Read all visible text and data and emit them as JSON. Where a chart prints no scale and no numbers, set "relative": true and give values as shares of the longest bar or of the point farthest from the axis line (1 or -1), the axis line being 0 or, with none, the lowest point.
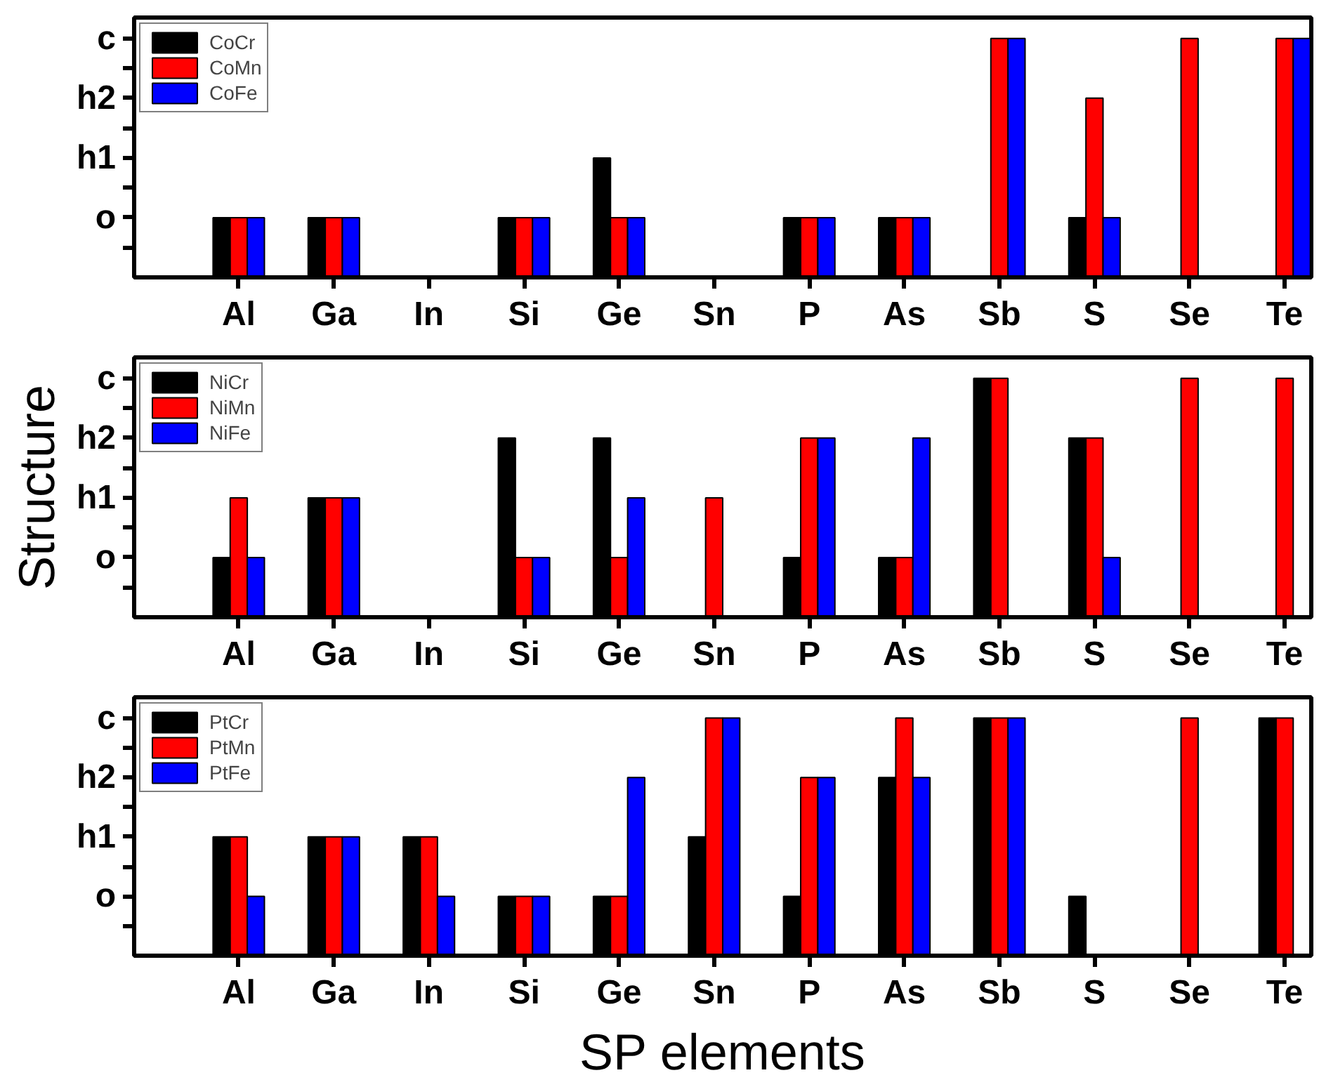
{
  "chart_data": [
    {
      "type": "bar",
      "relative": true,
      "categories": [
        "Al",
        "Ga",
        "In",
        "Si",
        "Ge",
        "Sn",
        "P",
        "As",
        "Sb",
        "S",
        "Se",
        "Te"
      ],
      "y_categories": [
        "c",
        "h2",
        "h1",
        "o"
      ],
      "series": [
        {
          "name": "CoCr",
          "color": "#000000",
          "values": [
            0.25,
            0.25,
            null,
            0.25,
            0.5,
            null,
            0.25,
            0.25,
            null,
            0.25,
            null,
            null
          ]
        },
        {
          "name": "CoMn",
          "color": "#ff0000",
          "values": [
            0.25,
            0.25,
            null,
            0.25,
            0.25,
            null,
            0.25,
            0.25,
            1,
            0.75,
            1,
            1
          ]
        },
        {
          "name": "CoFe",
          "color": "#0000ff",
          "values": [
            0.25,
            0.25,
            null,
            0.25,
            0.25,
            null,
            0.25,
            0.25,
            1,
            0.25,
            null,
            1
          ]
        }
      ],
      "legend": "top left"
    },
    {
      "type": "bar",
      "relative": true,
      "categories": [
        "Al",
        "Ga",
        "In",
        "Si",
        "Ge",
        "Sn",
        "P",
        "As",
        "Sb",
        "S",
        "Se",
        "Te"
      ],
      "y_categories": [
        "c",
        "h2",
        "h1",
        "o"
      ],
      "series": [
        {
          "name": "NiCr",
          "color": "#000000",
          "values": [
            0.25,
            0.5,
            null,
            0.75,
            0.75,
            null,
            0.25,
            0.25,
            1,
            0.75,
            null,
            null
          ]
        },
        {
          "name": "NiMn",
          "color": "#ff0000",
          "values": [
            0.5,
            0.5,
            null,
            0.25,
            0.25,
            0.5,
            0.75,
            0.25,
            1,
            0.75,
            1,
            1
          ]
        },
        {
          "name": "NiFe",
          "color": "#0000ff",
          "values": [
            0.25,
            0.5,
            null,
            0.25,
            0.5,
            null,
            0.75,
            0.75,
            null,
            0.25,
            null,
            null
          ]
        }
      ],
      "ylabel": "Structure",
      "legend": "top left"
    },
    {
      "type": "bar",
      "relative": true,
      "categories": [
        "Al",
        "Ga",
        "In",
        "Si",
        "Ge",
        "Sn",
        "P",
        "As",
        "Sb",
        "S",
        "Se",
        "Te"
      ],
      "y_categories": [
        "c",
        "h2",
        "h1",
        "o"
      ],
      "series": [
        {
          "name": "PtCr",
          "color": "#000000",
          "values": [
            0.5,
            0.5,
            0.5,
            0.25,
            0.25,
            0.5,
            0.25,
            0.75,
            1,
            0.25,
            null,
            1
          ]
        },
        {
          "name": "PtMn",
          "color": "#ff0000",
          "values": [
            0.5,
            0.5,
            0.5,
            0.25,
            0.25,
            1,
            0.75,
            1,
            1,
            null,
            1,
            1
          ]
        },
        {
          "name": "PtFe",
          "color": "#0000ff",
          "values": [
            0.25,
            0.5,
            0.25,
            0.25,
            0.75,
            1,
            0.75,
            0.75,
            1,
            null,
            null,
            null
          ]
        }
      ],
      "xlabel": "SP elements",
      "legend": "top left"
    }
  ]
}
